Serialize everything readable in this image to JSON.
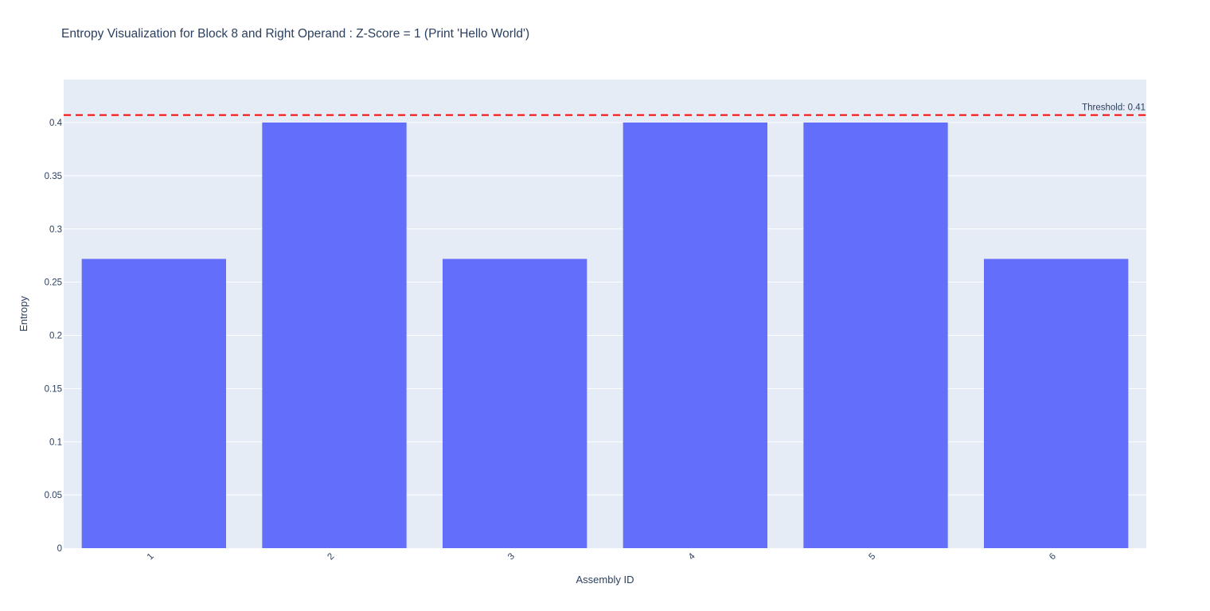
{
  "chart_data": {
    "type": "bar",
    "title": "Entropy Visualization for Block 8 and Right Operand : Z-Score = 1 (Print 'Hello World')",
    "xlabel": "Assembly ID",
    "ylabel": "Entropy",
    "categories": [
      "1",
      "2",
      "3",
      "4",
      "5",
      "6"
    ],
    "values": [
      0.2718,
      0.4,
      0.2718,
      0.4,
      0.4,
      0.2718
    ],
    "ylim": [
      0,
      0.4
    ],
    "yticks": [
      0,
      0.05,
      0.1,
      0.15,
      0.2,
      0.25,
      0.3,
      0.35,
      0.4
    ],
    "ytick_labels": [
      "0",
      "0.05",
      "0.1",
      "0.15",
      "0.2",
      "0.25",
      "0.3",
      "0.35",
      "0.4"
    ],
    "threshold": {
      "value": 0.407,
      "label": "Threshold: 0.41",
      "color": "#ff0000",
      "style": "dashed"
    },
    "bar_color": "#636efa",
    "plot_background": "#e5ecf6",
    "grid": true,
    "legend": "none"
  }
}
